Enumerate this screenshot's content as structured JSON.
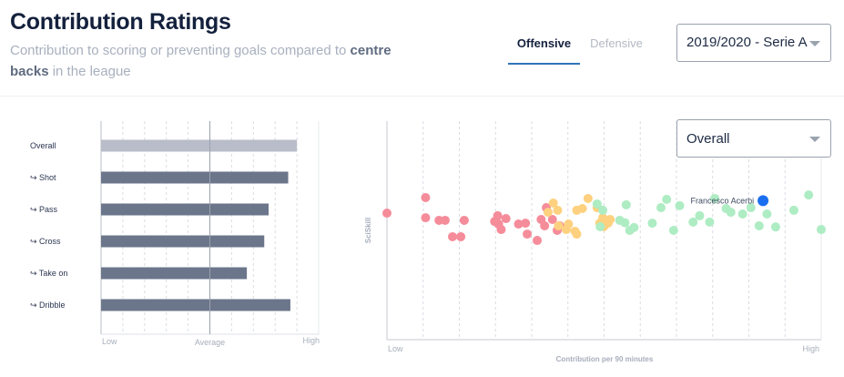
{
  "header": {
    "title": "Contribution Ratings",
    "subtitle_pre": "Contribution to scoring or preventing goals compared to",
    "subtitle_bold": "centre backs",
    "subtitle_post": "in the league"
  },
  "tabs": [
    {
      "label": "Offensive",
      "active": true
    },
    {
      "label": "Defensive",
      "active": false
    }
  ],
  "season_select": {
    "value": "2019/2020 - Serie A"
  },
  "metric_select": {
    "value": "Overall"
  },
  "colors": {
    "overall_bar": "#b9bdc9",
    "bar": "#6b768b",
    "red": "#f58c9a",
    "orange": "#fdd17f",
    "green": "#aeecc3",
    "highlight": "#1a6ff0"
  },
  "chart_data": [
    {
      "type": "bar",
      "orientation": "horizontal",
      "categories": [
        "Overall",
        "↪ Shot",
        "↪ Pass",
        "↪ Cross",
        "↪ Take on",
        "↪ Dribble"
      ],
      "values": [
        0.9,
        0.86,
        0.77,
        0.75,
        0.67,
        0.87
      ],
      "xlim": [
        0,
        1
      ],
      "reference_line": 0.5,
      "xticks": {
        "low": "Low",
        "mid": "Average",
        "high": "High"
      },
      "grid": true
    },
    {
      "type": "scatter",
      "xlabel": "Contribution per 90 minutes",
      "ylabel": "SciSkill",
      "xticks": {
        "low": "Low",
        "high": "High"
      },
      "xlim": [
        0,
        1
      ],
      "ylim": [
        0,
        1
      ],
      "grid": true,
      "highlight": {
        "label": "Francesco Acerbi",
        "x": 0.866,
        "y": 0.636
      },
      "series": [
        {
          "color_key": "red",
          "points": [
            [
              0.0,
              0.579
            ],
            [
              0.089,
              0.65
            ],
            [
              0.089,
              0.558
            ],
            [
              0.12,
              0.546
            ],
            [
              0.134,
              0.546
            ],
            [
              0.151,
              0.471
            ],
            [
              0.17,
              0.471
            ],
            [
              0.178,
              0.546
            ],
            [
              0.248,
              0.541
            ],
            [
              0.255,
              0.567
            ],
            [
              0.257,
              0.529
            ],
            [
              0.263,
              0.504
            ],
            [
              0.274,
              0.554
            ],
            [
              0.303,
              0.529
            ],
            [
              0.319,
              0.533
            ],
            [
              0.323,
              0.483
            ],
            [
              0.346,
              0.454
            ],
            [
              0.355,
              0.55
            ],
            [
              0.363,
              0.521
            ],
            [
              0.367,
              0.604
            ],
            [
              0.381,
              0.55
            ],
            [
              0.392,
              0.5
            ],
            [
              0.398,
              0.521
            ]
          ]
        },
        {
          "color_key": "orange",
          "points": [
            [
              0.371,
              0.583
            ],
            [
              0.383,
              0.625
            ],
            [
              0.393,
              0.592
            ],
            [
              0.395,
              0.521
            ],
            [
              0.413,
              0.504
            ],
            [
              0.418,
              0.529
            ],
            [
              0.433,
              0.496
            ],
            [
              0.437,
              0.592
            ],
            [
              0.45,
              0.6
            ],
            [
              0.463,
              0.646
            ],
            [
              0.484,
              0.604
            ],
            [
              0.49,
              0.533
            ],
            [
              0.497,
              0.558
            ],
            [
              0.509,
              0.533
            ],
            [
              0.514,
              0.55
            ],
            [
              0.437,
              0.483
            ],
            [
              0.499,
              0.517
            ]
          ]
        },
        {
          "color_key": "green",
          "points": [
            [
              0.484,
              0.621
            ],
            [
              0.491,
              0.517
            ],
            [
              0.497,
              0.592
            ],
            [
              0.536,
              0.546
            ],
            [
              0.551,
              0.617
            ],
            [
              0.559,
              0.5
            ],
            [
              0.569,
              0.513
            ],
            [
              0.611,
              0.533
            ],
            [
              0.631,
              0.604
            ],
            [
              0.644,
              0.642
            ],
            [
              0.66,
              0.5
            ],
            [
              0.674,
              0.613
            ],
            [
              0.705,
              0.538
            ],
            [
              0.72,
              0.567
            ],
            [
              0.743,
              0.538
            ],
            [
              0.781,
              0.6
            ],
            [
              0.792,
              0.583
            ],
            [
              0.819,
              0.575
            ],
            [
              0.838,
              0.604
            ],
            [
              0.857,
              0.521
            ],
            [
              0.875,
              0.575
            ],
            [
              0.895,
              0.516
            ],
            [
              0.937,
              0.592
            ],
            [
              0.971,
              0.662
            ],
            [
              1.0,
              0.504
            ],
            [
              0.548,
              0.535
            ],
            [
              0.755,
              0.646
            ]
          ]
        }
      ]
    }
  ]
}
